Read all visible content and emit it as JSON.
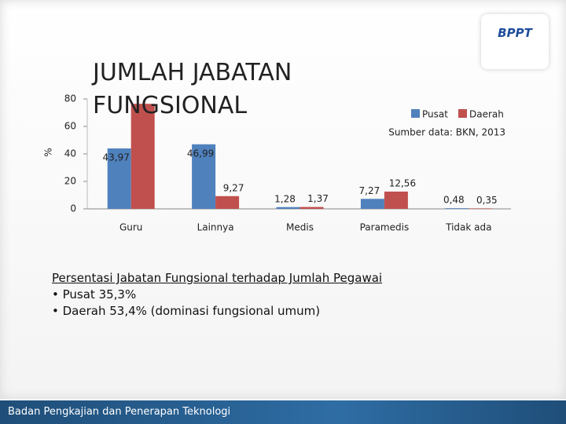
{
  "logo": "BPPT",
  "footer": "Badan Pengkajian dan Penerapan Teknologi",
  "notes": {
    "heading": "Persentasi Jabatan Fungsional terhadap Jumlah Pegawai",
    "items": [
      "Pusat  35,3%",
      "Daerah 53,4% (dominasi fungsional umum)"
    ]
  },
  "chart_data": {
    "type": "bar",
    "title": "JUMLAH JABATAN FUNGSIONAL",
    "ylabel": "%",
    "source": "Sumber data: BKN, 2013",
    "categories": [
      "Guru",
      "Lainnya",
      "Medis",
      "Paramedis",
      "Tidak ada"
    ],
    "series": [
      {
        "name": "Pusat",
        "color": "#4f81bd",
        "values": [
          43.97,
          46.99,
          1.28,
          7.27,
          0.48
        ],
        "value_labels": [
          "43,97",
          "46,99",
          "1,28",
          "7,27",
          "0,48"
        ]
      },
      {
        "name": "Daerah",
        "color": "#c0504d",
        "values": [
          76.45,
          9.27,
          1.37,
          12.56,
          0.35
        ],
        "value_labels": [
          null,
          "9,27",
          "1,37",
          "12,56",
          "0,35"
        ]
      }
    ],
    "ylim": [
      0,
      80
    ],
    "yticks": [
      0,
      20,
      40,
      60,
      80
    ],
    "legend": "upper right"
  }
}
